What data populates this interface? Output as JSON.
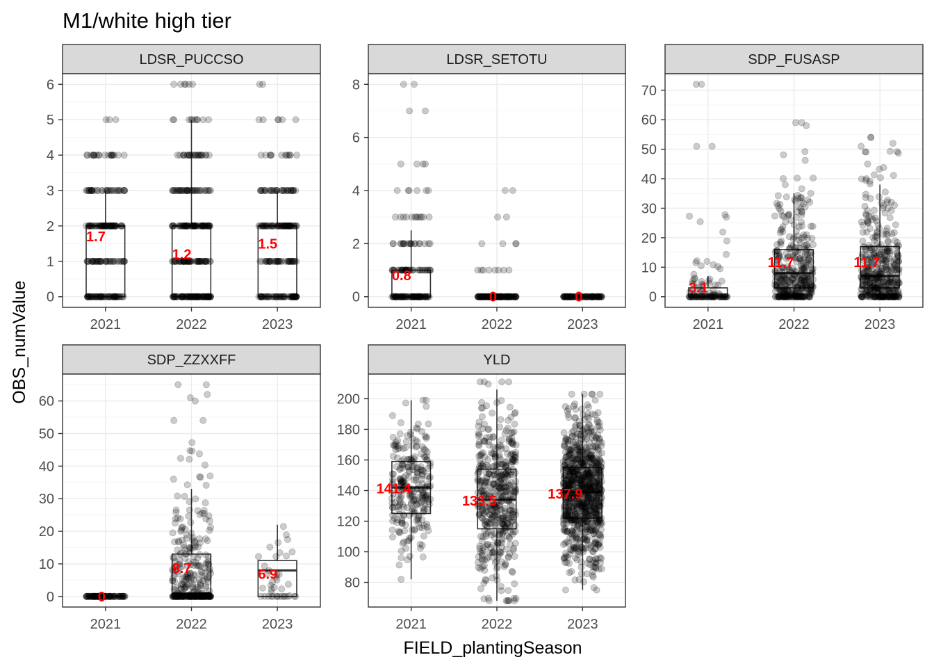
{
  "title": "M1/white high tier",
  "xlabel": "FIELD_plantingSeason",
  "ylabel": "OBS_numValue",
  "colors": {
    "panel_border": "#333333",
    "strip_fill": "#d9d9d9",
    "grid_major": "#ebebeb",
    "grid_minor": "#f5f5f5",
    "point": "#000000",
    "mean_label": "#ff0000",
    "axis_text": "#4d4d4d"
  },
  "chart_data": [
    {
      "type": "box",
      "facet": "LDSR_PUCCSO",
      "categories": [
        "2021",
        "2022",
        "2023"
      ],
      "ylim": [
        -0.3,
        6.3
      ],
      "yticks": [
        0,
        1,
        2,
        3,
        4,
        5,
        6
      ],
      "minor_grid": true,
      "boxes": [
        {
          "q1": 0,
          "median": 2,
          "q3": 2,
          "lo": 0,
          "hi": 3
        },
        {
          "q1": 0,
          "median": 2,
          "q3": 2,
          "lo": 0,
          "hi": 5
        },
        {
          "q1": 0,
          "median": 2,
          "q3": 2,
          "lo": 0,
          "hi": 3
        }
      ],
      "means": [
        {
          "value": 1.7,
          "label": "1.7"
        },
        {
          "value": 1.2,
          "label": "1.2"
        },
        {
          "value": 1.5,
          "label": "1.5"
        }
      ],
      "point_groups": [
        [
          [
            0,
            60
          ],
          [
            1,
            40
          ],
          [
            2,
            55
          ],
          [
            3,
            35
          ],
          [
            4,
            20
          ],
          [
            5,
            3
          ]
        ],
        [
          [
            0,
            90
          ],
          [
            1,
            55
          ],
          [
            2,
            60
          ],
          [
            3,
            40
          ],
          [
            4,
            25
          ],
          [
            5,
            10
          ],
          [
            6,
            6
          ]
        ],
        [
          [
            0,
            60
          ],
          [
            1,
            40
          ],
          [
            2,
            55
          ],
          [
            3,
            35
          ],
          [
            4,
            12
          ],
          [
            5,
            6
          ],
          [
            6,
            2
          ]
        ]
      ]
    },
    {
      "type": "box",
      "facet": "LDSR_SETOTU",
      "categories": [
        "2021",
        "2022",
        "2023"
      ],
      "ylim": [
        -0.4,
        8.4
      ],
      "yticks": [
        0,
        2,
        4,
        6,
        8
      ],
      "minor_grid": true,
      "boxes": [
        {
          "q1": 0,
          "median": 0,
          "q3": 1,
          "lo": 0,
          "hi": 2.5
        },
        {
          "q1": 0,
          "median": 0,
          "q3": 0,
          "lo": 0,
          "hi": 0
        },
        {
          "q1": 0,
          "median": 0,
          "q3": 0,
          "lo": 0,
          "hi": 0
        }
      ],
      "means": [
        {
          "value": 0.8,
          "label": "0.8"
        },
        {
          "value": 0,
          "label": "0"
        },
        {
          "value": 0,
          "label": "0"
        }
      ],
      "point_groups": [
        [
          [
            0,
            80
          ],
          [
            1,
            40
          ],
          [
            2,
            20
          ],
          [
            3,
            12
          ],
          [
            4,
            6
          ],
          [
            5,
            4
          ],
          [
            7,
            2
          ],
          [
            8,
            2
          ]
        ],
        [
          [
            0,
            120
          ],
          [
            1,
            8
          ],
          [
            2,
            4
          ],
          [
            3,
            2
          ],
          [
            4,
            2
          ]
        ],
        [
          [
            0,
            90
          ]
        ]
      ]
    },
    {
      "type": "box",
      "facet": "SDP_FUSASP",
      "categories": [
        "2021",
        "2022",
        "2023"
      ],
      "ylim": [
        -3.6,
        75.6
      ],
      "yticks": [
        0,
        10,
        20,
        30,
        40,
        50,
        60,
        70
      ],
      "minor_grid": true,
      "boxes": [
        {
          "q1": 0,
          "median": 0,
          "q3": 3,
          "lo": 0,
          "hi": 7
        },
        {
          "q1": 3,
          "median": 8,
          "q3": 16,
          "lo": 0,
          "hi": 35
        },
        {
          "q1": 3,
          "median": 7,
          "q3": 17,
          "lo": 0,
          "hi": 38
        }
      ],
      "means": [
        {
          "value": 3.1,
          "label": "3.1"
        },
        {
          "value": 11.7,
          "label": "11.7"
        },
        {
          "value": 11.7,
          "label": "11.7"
        }
      ],
      "spreads": [
        {
          "n": 110,
          "zero_frac": 0.45,
          "scale": 7,
          "cap": 32,
          "outliers": [
            51,
            51,
            72,
            72
          ]
        },
        {
          "n": 380,
          "zero_frac": 0.16,
          "scale": 12,
          "cap": 50,
          "outliers": [
            58,
            59,
            59
          ]
        },
        {
          "n": 430,
          "zero_frac": 0.14,
          "scale": 13,
          "cap": 50,
          "outliers": [
            51,
            52,
            54,
            54
          ]
        }
      ]
    },
    {
      "type": "box",
      "facet": "SDP_ZZXXFF",
      "categories": [
        "2021",
        "2022",
        "2023"
      ],
      "ylim": [
        -3.25,
        68.25
      ],
      "yticks": [
        0,
        10,
        20,
        30,
        40,
        50,
        60
      ],
      "minor_grid": true,
      "boxes": [
        {
          "q1": 0,
          "median": 0,
          "q3": 0,
          "lo": 0,
          "hi": 0
        },
        {
          "q1": 0,
          "median": 1,
          "q3": 13,
          "lo": 0,
          "hi": 33
        },
        {
          "q1": 0,
          "median": 8,
          "q3": 11,
          "lo": 0,
          "hi": 22
        }
      ],
      "means": [
        {
          "value": 0,
          "label": "0"
        },
        {
          "value": 8.7,
          "label": "8.7"
        },
        {
          "value": 6.9,
          "label": "6.9"
        }
      ],
      "spreads": [
        {
          "n": 90,
          "zero_frac": 1,
          "scale": 1,
          "cap": 0,
          "outliers": []
        },
        {
          "n": 320,
          "zero_frac": 0.45,
          "scale": 14,
          "cap": 52,
          "outliers": [
            54,
            54,
            60,
            61,
            62,
            65,
            65
          ]
        },
        {
          "n": 40,
          "zero_frac": 0.2,
          "scale": 9,
          "cap": 22,
          "outliers": []
        }
      ]
    },
    {
      "type": "box",
      "facet": "YLD",
      "categories": [
        "2021",
        "2022",
        "2023"
      ],
      "ylim": [
        63.9,
        216.1
      ],
      "yticks": [
        80,
        100,
        120,
        140,
        160,
        180,
        200
      ],
      "minor_grid": true,
      "boxes": [
        {
          "q1": 125,
          "median": 142,
          "q3": 159,
          "lo": 82,
          "hi": 199
        },
        {
          "q1": 115,
          "median": 134,
          "q3": 154,
          "lo": 68,
          "hi": 206
        },
        {
          "q1": 122,
          "median": 139,
          "q3": 155,
          "lo": 75,
          "hi": 203
        }
      ],
      "means": [
        {
          "value": 141.4,
          "label": "141.4"
        },
        {
          "value": 133.5,
          "label": "133.5"
        },
        {
          "value": 137.9,
          "label": "137.9"
        }
      ],
      "normals": [
        {
          "n": 260,
          "mean": 141,
          "sd": 24,
          "min": 82,
          "max": 199
        },
        {
          "n": 480,
          "mean": 134,
          "sd": 28,
          "min": 68,
          "max": 211
        },
        {
          "n": 900,
          "mean": 138,
          "sd": 24,
          "min": 75,
          "max": 203
        }
      ]
    }
  ]
}
